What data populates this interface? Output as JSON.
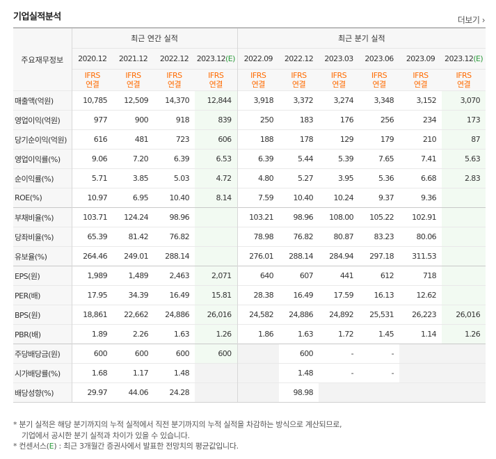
{
  "header": {
    "title": "기업실적분석",
    "more_label": "더보기"
  },
  "table": {
    "corner_label": "주요재무정보",
    "group_annual": "최근 연간 실적",
    "group_quarterly": "최근 분기 실적",
    "periods": [
      "2020.12",
      "2021.12",
      "2022.12",
      "2023.12",
      "2022.09",
      "2022.12",
      "2023.03",
      "2023.06",
      "2023.09",
      "2023.12"
    ],
    "consensus_mark": "(E)",
    "ifrs_label": "IFRS",
    "consolidated_label": "연결",
    "rows": [
      {
        "label": "매출액(억원)",
        "values": [
          "10,785",
          "12,509",
          "14,370",
          "12,844",
          "3,918",
          "3,372",
          "3,274",
          "3,348",
          "3,152",
          "3,070"
        ]
      },
      {
        "label": "영업이익(억원)",
        "values": [
          "977",
          "900",
          "918",
          "839",
          "250",
          "183",
          "176",
          "256",
          "234",
          "173"
        ]
      },
      {
        "label": "당기순이익(억원)",
        "values": [
          "616",
          "481",
          "723",
          "606",
          "188",
          "178",
          "129",
          "179",
          "210",
          "87"
        ]
      },
      {
        "label": "영업이익률(%)",
        "values": [
          "9.06",
          "7.20",
          "6.39",
          "6.53",
          "6.39",
          "5.44",
          "5.39",
          "7.65",
          "7.41",
          "5.63"
        ]
      },
      {
        "label": "순이익률(%)",
        "values": [
          "5.71",
          "3.85",
          "5.03",
          "4.72",
          "4.80",
          "5.27",
          "3.95",
          "5.36",
          "6.68",
          "2.83"
        ]
      },
      {
        "label": "ROE(%)",
        "values": [
          "10.97",
          "6.95",
          "10.40",
          "8.14",
          "7.59",
          "10.40",
          "10.24",
          "9.37",
          "9.36",
          ""
        ]
      },
      {
        "label": "부채비율(%)",
        "values": [
          "103.71",
          "124.24",
          "98.96",
          "",
          "103.21",
          "98.96",
          "108.00",
          "105.22",
          "102.91",
          ""
        ]
      },
      {
        "label": "당좌비율(%)",
        "values": [
          "65.39",
          "81.42",
          "76.82",
          "",
          "78.98",
          "76.82",
          "80.87",
          "83.23",
          "80.06",
          ""
        ]
      },
      {
        "label": "유보율(%)",
        "values": [
          "264.46",
          "249.01",
          "288.14",
          "",
          "276.01",
          "288.14",
          "284.94",
          "297.18",
          "311.53",
          ""
        ]
      },
      {
        "label": "EPS(원)",
        "values": [
          "1,989",
          "1,489",
          "2,463",
          "2,071",
          "640",
          "607",
          "441",
          "612",
          "718",
          ""
        ]
      },
      {
        "label": "PER(배)",
        "values": [
          "17.95",
          "34.39",
          "16.49",
          "15.81",
          "28.38",
          "16.49",
          "17.59",
          "16.13",
          "12.62",
          ""
        ]
      },
      {
        "label": "BPS(원)",
        "values": [
          "18,861",
          "22,662",
          "24,886",
          "26,016",
          "24,582",
          "24,886",
          "24,892",
          "25,531",
          "26,223",
          "26,016"
        ]
      },
      {
        "label": "PBR(배)",
        "values": [
          "1.89",
          "2.26",
          "1.63",
          "1.26",
          "1.86",
          "1.63",
          "1.72",
          "1.45",
          "1.14",
          "1.26"
        ]
      },
      {
        "label": "주당배당금(원)",
        "values": [
          "600",
          "600",
          "600",
          "600",
          "",
          "600",
          "-",
          "-",
          "",
          ""
        ]
      },
      {
        "label": "시가배당률(%)",
        "values": [
          "1.68",
          "1.17",
          "1.48",
          "",
          "",
          "1.48",
          "-",
          "-",
          "",
          ""
        ]
      },
      {
        "label": "배당성향(%)",
        "values": [
          "29.97",
          "44.06",
          "24.28",
          "",
          "",
          "98.98",
          "",
          "",
          "",
          ""
        ]
      }
    ]
  },
  "notes": {
    "line1": "* 분기 실적은 해당 분기까지의 누적 실적에서 직전 분기까지의 누적 실적을 차감하는 방식으로 계산되므로,",
    "line2": "기업에서 공시한 분기 실적과 차이가 있을 수 있습니다.",
    "line3a": "* 컨센서스(",
    "line3e": "E",
    "line3b": ") : 최근 3개월간 증권사에서 발표한 전망치의 평균값입니다."
  },
  "colors": {
    "ifrs_orange": "#ff6b00",
    "consensus_green": "#2a9a3a",
    "highlight_bg": "#f2faf2"
  }
}
